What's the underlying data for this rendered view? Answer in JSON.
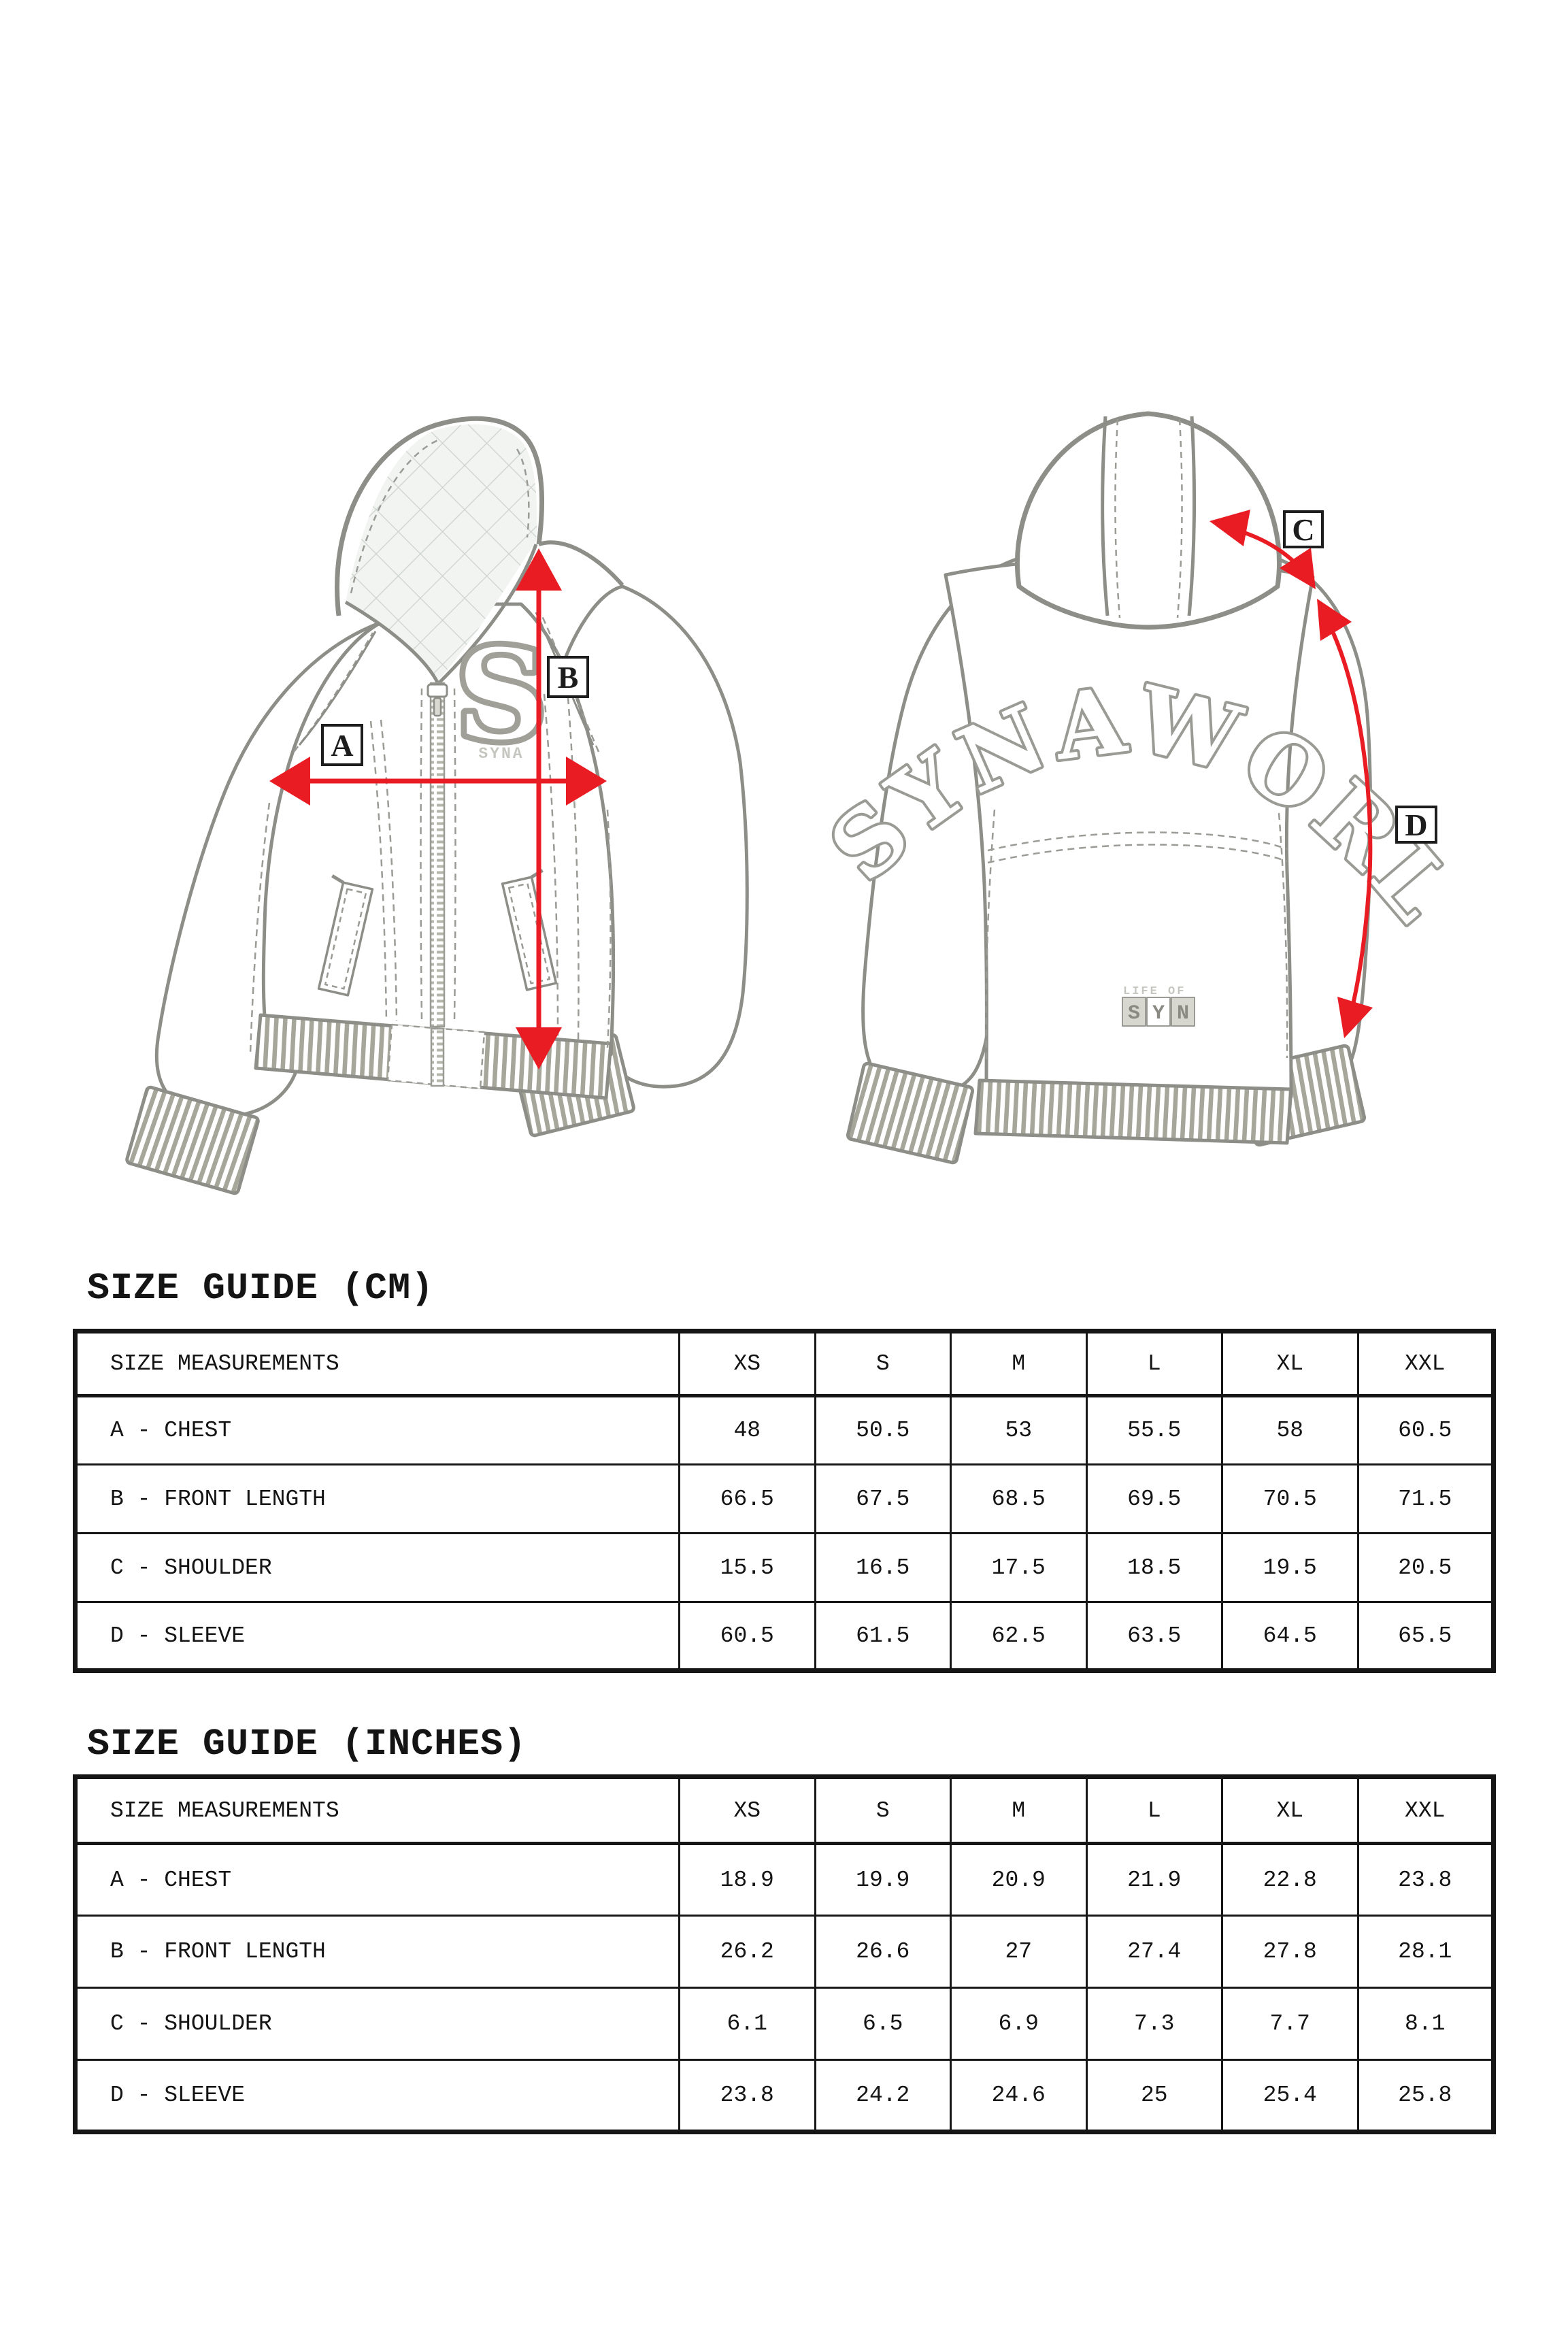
{
  "colors": {
    "accent_red": "#e91c24",
    "line_gray": "#8e8e88",
    "stitch_gray": "#9b9b95",
    "rib_gray": "#a6a69a",
    "faint_gray": "#c6c6c0",
    "border_black": "#161616"
  },
  "diagram": {
    "front": {
      "patch_letter": "S",
      "patch_brand": "SYNA",
      "labels": {
        "a": "A",
        "b": "B"
      }
    },
    "back": {
      "back_text": "SYNAWORLD",
      "patch_line1": "LIFE OF",
      "patch_letters": [
        "S",
        "Y",
        "N"
      ],
      "labels": {
        "c": "C",
        "d": "D"
      }
    }
  },
  "size_guide_cm": {
    "title": "SIZE GUIDE (CM)",
    "columns": [
      "SIZE MEASUREMENTS",
      "XS",
      "S",
      "M",
      "L",
      "XL",
      "XXL"
    ],
    "rows": [
      {
        "label": "A - CHEST",
        "values": [
          "48",
          "50.5",
          "53",
          "55.5",
          "58",
          "60.5"
        ]
      },
      {
        "label": "B - FRONT LENGTH",
        "values": [
          "66.5",
          "67.5",
          "68.5",
          "69.5",
          "70.5",
          "71.5"
        ]
      },
      {
        "label": "C - SHOULDER",
        "values": [
          "15.5",
          "16.5",
          "17.5",
          "18.5",
          "19.5",
          "20.5"
        ]
      },
      {
        "label": "D - SLEEVE",
        "values": [
          "60.5",
          "61.5",
          "62.5",
          "63.5",
          "64.5",
          "65.5"
        ]
      }
    ]
  },
  "size_guide_inches": {
    "title": "SIZE GUIDE (INCHES)",
    "columns": [
      "SIZE MEASUREMENTS",
      "XS",
      "S",
      "M",
      "L",
      "XL",
      "XXL"
    ],
    "rows": [
      {
        "label": "A - CHEST",
        "values": [
          "18.9",
          "19.9",
          "20.9",
          "21.9",
          "22.8",
          "23.8"
        ]
      },
      {
        "label": "B - FRONT LENGTH",
        "values": [
          "26.2",
          "26.6",
          "27",
          "27.4",
          "27.8",
          "28.1"
        ]
      },
      {
        "label": "C - SHOULDER",
        "values": [
          "6.1",
          "6.5",
          "6.9",
          "7.3",
          "7.7",
          "8.1"
        ]
      },
      {
        "label": "D - SLEEVE",
        "values": [
          "23.8",
          "24.2",
          "24.6",
          "25",
          "25.4",
          "25.8"
        ]
      }
    ]
  }
}
